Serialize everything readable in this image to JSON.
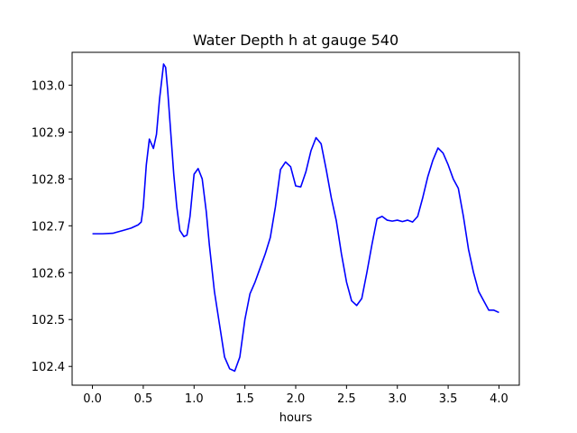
{
  "chart_data": {
    "type": "line",
    "title": "Water Depth h at gauge 540",
    "xlabel": "hours",
    "ylabel": "",
    "xlim": [
      -0.2,
      4.2
    ],
    "ylim": [
      102.36,
      103.07
    ],
    "xticks": [
      0.0,
      0.5,
      1.0,
      1.5,
      2.0,
      2.5,
      3.0,
      3.5,
      4.0
    ],
    "xtick_labels": [
      "0.0",
      "0.5",
      "1.0",
      "1.5",
      "2.0",
      "2.5",
      "3.0",
      "3.5",
      "4.0"
    ],
    "yticks": [
      102.4,
      102.5,
      102.6,
      102.7,
      102.8,
      102.9,
      103.0
    ],
    "ytick_labels": [
      "102.4",
      "102.5",
      "102.6",
      "102.7",
      "102.8",
      "102.9",
      "103.0"
    ],
    "grid": false,
    "series": [
      {
        "color": "#0000ff",
        "x": [
          0.0,
          0.1,
          0.2,
          0.3,
          0.38,
          0.45,
          0.48,
          0.5,
          0.53,
          0.56,
          0.6,
          0.63,
          0.66,
          0.7,
          0.72,
          0.74,
          0.77,
          0.8,
          0.83,
          0.86,
          0.9,
          0.93,
          0.96,
          1.0,
          1.04,
          1.08,
          1.12,
          1.15,
          1.2,
          1.25,
          1.3,
          1.35,
          1.4,
          1.45,
          1.5,
          1.55,
          1.6,
          1.65,
          1.7,
          1.75,
          1.8,
          1.85,
          1.9,
          1.95,
          2.0,
          2.05,
          2.1,
          2.15,
          2.2,
          2.25,
          2.3,
          2.35,
          2.4,
          2.45,
          2.5,
          2.55,
          2.6,
          2.65,
          2.7,
          2.75,
          2.8,
          2.85,
          2.9,
          2.95,
          3.0,
          3.05,
          3.1,
          3.15,
          3.2,
          3.25,
          3.3,
          3.35,
          3.4,
          3.45,
          3.5,
          3.55,
          3.6,
          3.65,
          3.7,
          3.75,
          3.8,
          3.85,
          3.9,
          3.95,
          4.0
        ],
        "y": [
          102.683,
          102.683,
          102.684,
          102.69,
          102.695,
          102.702,
          102.708,
          102.74,
          102.83,
          102.885,
          102.865,
          102.895,
          102.97,
          103.045,
          103.038,
          102.99,
          102.9,
          102.81,
          102.74,
          102.69,
          102.677,
          102.68,
          102.72,
          102.81,
          102.822,
          102.8,
          102.73,
          102.66,
          102.56,
          102.49,
          102.42,
          102.395,
          102.39,
          102.42,
          102.5,
          102.555,
          102.58,
          102.61,
          102.64,
          102.675,
          102.74,
          102.82,
          102.836,
          102.826,
          102.785,
          102.783,
          102.815,
          102.86,
          102.888,
          102.875,
          102.82,
          102.76,
          102.71,
          102.64,
          102.58,
          102.54,
          102.53,
          102.545,
          102.6,
          102.66,
          102.715,
          102.72,
          102.712,
          102.71,
          102.712,
          102.709,
          102.712,
          102.708,
          102.72,
          102.76,
          102.805,
          102.84,
          102.866,
          102.855,
          102.83,
          102.8,
          102.78,
          102.72,
          102.65,
          102.6,
          102.56,
          102.54,
          102.52,
          102.52,
          102.515
        ]
      }
    ]
  }
}
